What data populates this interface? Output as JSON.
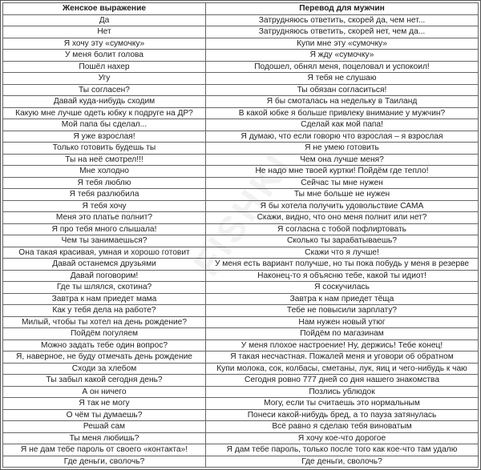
{
  "headers": [
    "Женское выражение",
    "Перевод для мужчин"
  ],
  "watermark": "FISHKI",
  "rows": [
    [
      "Да",
      "Затрудняюсь ответить, скорей да, чем нет..."
    ],
    [
      "Нет",
      "Затрудняюсь ответить, скорей нет, чем да..."
    ],
    [
      "Я хочу эту «сумочку»",
      "Купи мне эту «сумочку»"
    ],
    [
      "У меня болит голова",
      "Я жду «сумочку»"
    ],
    [
      "Пошёл нахер",
      "Подошел, обнял меня, поцеловал и успокоил!"
    ],
    [
      "Угу",
      "Я тебя не слушаю"
    ],
    [
      "Ты согласен?",
      "Ты обязан согласиться!"
    ],
    [
      "Давай куда-нибудь сходим",
      "Я бы смоталась на недельку в Таиланд"
    ],
    [
      "Какую мне лучше одеть юбку к подруге на ДР?",
      "В какой юбке я больше привлеку внимание у мужчин?"
    ],
    [
      "Мой папа бы сделал...",
      "Сделай как мой папа!"
    ],
    [
      "Я уже взрослая!",
      "Я думаю, что если говорю что взрослая – я взрослая"
    ],
    [
      "Только готовить будешь ты",
      "Я не умею готовить"
    ],
    [
      "Ты на неё смотрел!!!",
      "Чем она лучше меня?"
    ],
    [
      "Мне холодно",
      "Не надо мне твоей куртки! Пойдём где тепло!"
    ],
    [
      "Я тебя люблю",
      "Сейчас ты мне нужен"
    ],
    [
      "Я тебя разлюбила",
      "Ты мне больше не нужен"
    ],
    [
      "Я тебя хочу",
      "Я бы хотела получить удовольствие САМА"
    ],
    [
      "Меня это платье полнит?",
      "Скажи, видно, что оно меня полнит или нет?"
    ],
    [
      "Я про тебя много слышала!",
      "Я согласна с тобой пофлиртовать"
    ],
    [
      "Чем ты занимаешься?",
      "Сколько ты зарабатываешь?"
    ],
    [
      "Она такая красивая, умная и хорошо готовит",
      "Скажи что я лучше!"
    ],
    [
      "Давай останемся друзьями",
      "У меня есть вариант получше, но ты пока побудь у меня в резерве"
    ],
    [
      "Давай поговорим!",
      "Наконец-то я объясню тебе, какой ты идиот!"
    ],
    [
      "Где ты шлялся, скотина?",
      "Я соскучилась"
    ],
    [
      "Завтра к нам приедет мама",
      "Завтра к нам приедет тёща"
    ],
    [
      "Как у тебя дела на работе?",
      "Тебе не повысили зарплату?"
    ],
    [
      "Милый, чтобы ты хотел на день рождение?",
      "Нам нужен новый утюг"
    ],
    [
      "Пойдём погуляем",
      "Пойдём по магазинам"
    ],
    [
      "Можно задать тебе один вопрос?",
      "У меня плохое настроение! Ну, держись! Тебе конец!"
    ],
    [
      "Я, наверное, не буду отмечать день рождение",
      "Я такая несчастная. Пожалей меня и уговори об обратном"
    ],
    [
      "Сходи за хлебом",
      "Купи молока, сок, колбасы, сметаны, лук, яиц и чего-нибудь к чаю"
    ],
    [
      "Ты забыл какой сегодня день?",
      "Сегодня ровно 777 дней со дня нашего знакомства"
    ],
    [
      "А он ничего",
      "Позлись ублюдок"
    ],
    [
      "Я так не могу",
      "Могу, если ты считаешь это нормальным"
    ],
    [
      "О чём ты думаешь?",
      "Понеси какой-нибудь бред, а то пауза затянулась"
    ],
    [
      "Решай сам",
      "Всё равно я сделаю тебя виноватым"
    ],
    [
      "Ты меня любишь?",
      "Я хочу кое-что дорогое"
    ],
    [
      "Я не дам тебе пароль от своего «контакта»!",
      "Я дам тебе пароль, только после того как кое-что там удалю"
    ],
    [
      "Где деньги, сволочь?",
      "Где деньги, сволочь?"
    ]
  ]
}
